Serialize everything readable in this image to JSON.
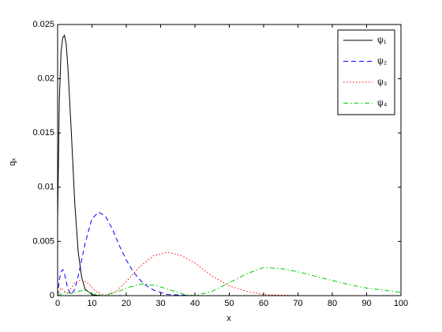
{
  "chart_data": {
    "type": "line",
    "xlabel": "x",
    "ylabel": "qₓ",
    "xlim": [
      0,
      100
    ],
    "xticks": [
      0,
      10,
      20,
      30,
      40,
      50,
      60,
      70,
      80,
      90,
      100
    ],
    "ylim": [
      0,
      0.025
    ],
    "yticks": [
      0,
      0.005,
      0.01,
      0.015,
      0.02,
      0.025
    ],
    "legend": "northeast",
    "series": [
      {
        "name": "ψ₁",
        "color": "#000000",
        "style": "solid",
        "x": [
          0,
          0.5,
          1,
          1.5,
          2,
          2.5,
          3,
          4,
          5,
          6,
          7,
          8,
          10,
          12,
          20,
          30,
          40,
          50,
          60,
          70,
          80,
          90,
          100
        ],
        "values": [
          0.007,
          0.018,
          0.0225,
          0.0238,
          0.024,
          0.0232,
          0.021,
          0.015,
          0.0085,
          0.004,
          0.0017,
          0.0006,
          0.0001,
          0,
          0,
          0,
          0,
          0,
          0,
          0,
          0,
          0,
          0
        ]
      },
      {
        "name": "ψ₂",
        "color": "#0000ff",
        "style": "dashed",
        "x": [
          0,
          0.5,
          1,
          1.5,
          2,
          3,
          4,
          5,
          6,
          8,
          10,
          12,
          14,
          16,
          18,
          20,
          22,
          25,
          28,
          32,
          40,
          50,
          60,
          70,
          80,
          90,
          100
        ],
        "values": [
          0,
          0.0015,
          0.0022,
          0.0024,
          0.002,
          0.0006,
          0.0001,
          0.0006,
          0.0018,
          0.0048,
          0.0071,
          0.0077,
          0.0073,
          0.0061,
          0.0046,
          0.0033,
          0.0022,
          0.0011,
          0.0005,
          0.0001,
          0,
          0,
          0,
          0,
          0,
          0,
          0
        ]
      },
      {
        "name": "ψ₃",
        "color": "#ff0000",
        "style": "dotted",
        "x": [
          0,
          1,
          2,
          3,
          5,
          7,
          9,
          11,
          14,
          17,
          20,
          24,
          28,
          32,
          36,
          40,
          45,
          50,
          55,
          60,
          70,
          80,
          90,
          100
        ],
        "values": [
          0,
          0.0007,
          0.0004,
          0.0002,
          0.0012,
          0.0015,
          0.0011,
          0.0004,
          0,
          0.0004,
          0.0013,
          0.0027,
          0.0037,
          0.004,
          0.0037,
          0.003,
          0.0018,
          0.0009,
          0.0004,
          0.0001,
          0,
          0,
          0,
          0
        ]
      },
      {
        "name": "ψ₄",
        "color": "#00cc00",
        "style": "dashdot",
        "x": [
          0,
          2,
          4,
          6,
          8,
          10,
          13,
          17,
          21,
          25,
          29,
          33,
          37,
          40,
          45,
          50,
          55,
          60,
          65,
          70,
          75,
          80,
          85,
          90,
          95,
          100
        ],
        "values": [
          0,
          0.0003,
          0.0002,
          0.0004,
          0.0005,
          0.0002,
          0,
          0.0003,
          0.0008,
          0.0011,
          0.0009,
          0.0005,
          0.0001,
          0,
          0.0004,
          0.0012,
          0.002,
          0.0026,
          0.0025,
          0.0022,
          0.0018,
          0.0014,
          0.001,
          0.0007,
          0.0005,
          0.0003
        ]
      }
    ]
  }
}
